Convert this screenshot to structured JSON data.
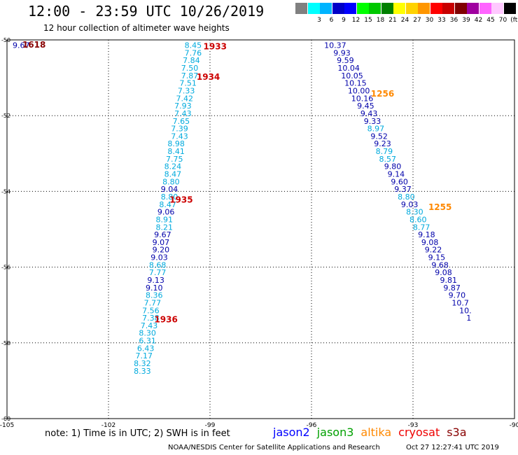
{
  "header": {
    "title": "12:00 - 23:59 UTC 10/26/2019",
    "subtitle": "12 hour collection of altimeter wave heights"
  },
  "legend": {
    "swatches": [
      {
        "label": "",
        "color": "#808080"
      },
      {
        "label": "3",
        "color": "#00ffff"
      },
      {
        "label": "6",
        "color": "#00b4ff"
      },
      {
        "label": "9",
        "color": "#0000c8"
      },
      {
        "label": "12",
        "color": "#0000ff"
      },
      {
        "label": "15",
        "color": "#00ff00"
      },
      {
        "label": "18",
        "color": "#00c800"
      },
      {
        "label": "21",
        "color": "#008000"
      },
      {
        "label": "24",
        "color": "#ffff00"
      },
      {
        "label": "27",
        "color": "#ffd200"
      },
      {
        "label": "30",
        "color": "#ff9600"
      },
      {
        "label": "33",
        "color": "#ff0000"
      },
      {
        "label": "36",
        "color": "#c80000"
      },
      {
        "label": "39",
        "color": "#800000"
      },
      {
        "label": "42",
        "color": "#a000a0"
      },
      {
        "label": "45",
        "color": "#ff64ff"
      },
      {
        "label": "70",
        "color": "#ffc8ff"
      },
      {
        "label": "(ft)",
        "color": "#000000"
      }
    ]
  },
  "axes": {
    "lon_ticks": [
      "-105",
      "-102",
      "-99",
      "-96",
      "-93",
      "-90"
    ],
    "lat_ticks": [
      "-50",
      "-52",
      "-54",
      "-56",
      "-58",
      "-60"
    ],
    "lon_range": [
      -105,
      -90
    ],
    "lat_range": [
      -60,
      -50
    ]
  },
  "colors": {
    "low": "#00aadd",
    "mid": "#0000aa",
    "time_red": "#cc0000",
    "time_orange": "#ff8800",
    "dark_red": "#880000"
  },
  "track_west": [
    {
      "lon": -99.5,
      "lat": -50.14,
      "v": "8.45",
      "c": "low"
    },
    {
      "lon": -99.5,
      "lat": -50.34,
      "v": "7.76",
      "c": "low"
    },
    {
      "lon": -99.55,
      "lat": -50.54,
      "v": "7.84",
      "c": "low"
    },
    {
      "lon": -99.6,
      "lat": -50.74,
      "v": "7.50",
      "c": "low"
    },
    {
      "lon": -99.6,
      "lat": -50.94,
      "v": "7.87",
      "c": "low"
    },
    {
      "lon": -99.65,
      "lat": -51.14,
      "v": "7.51",
      "c": "low"
    },
    {
      "lon": -99.7,
      "lat": -51.34,
      "v": "7.33",
      "c": "low"
    },
    {
      "lon": -99.75,
      "lat": -51.54,
      "v": "7.42",
      "c": "low"
    },
    {
      "lon": -99.8,
      "lat": -51.74,
      "v": "7.93",
      "c": "low"
    },
    {
      "lon": -99.8,
      "lat": -51.94,
      "v": "7.43",
      "c": "low"
    },
    {
      "lon": -99.85,
      "lat": -52.14,
      "v": "7.65",
      "c": "low"
    },
    {
      "lon": -99.9,
      "lat": -52.34,
      "v": "7.39",
      "c": "low"
    },
    {
      "lon": -99.9,
      "lat": -52.54,
      "v": "7.43",
      "c": "low"
    },
    {
      "lon": -100.0,
      "lat": -52.74,
      "v": "8.98",
      "c": "low"
    },
    {
      "lon": -100.0,
      "lat": -52.94,
      "v": "8.41",
      "c": "low"
    },
    {
      "lon": -100.05,
      "lat": -53.14,
      "v": "7.75",
      "c": "low"
    },
    {
      "lon": -100.1,
      "lat": -53.34,
      "v": "8.24",
      "c": "low"
    },
    {
      "lon": -100.1,
      "lat": -53.54,
      "v": "8.47",
      "c": "low"
    },
    {
      "lon": -100.15,
      "lat": -53.74,
      "v": "8.80",
      "c": "low"
    },
    {
      "lon": -100.2,
      "lat": -53.94,
      "v": "9.04",
      "c": "mid"
    },
    {
      "lon": -100.2,
      "lat": -54.14,
      "v": "8.80",
      "c": "low"
    },
    {
      "lon": -100.25,
      "lat": -54.34,
      "v": "8.47",
      "c": "low"
    },
    {
      "lon": -100.3,
      "lat": -54.54,
      "v": "9.06",
      "c": "mid"
    },
    {
      "lon": -100.35,
      "lat": -54.74,
      "v": "8.91",
      "c": "low"
    },
    {
      "lon": -100.35,
      "lat": -54.94,
      "v": "8.21",
      "c": "low"
    },
    {
      "lon": -100.4,
      "lat": -55.14,
      "v": "9.67",
      "c": "mid"
    },
    {
      "lon": -100.45,
      "lat": -55.34,
      "v": "9.07",
      "c": "mid"
    },
    {
      "lon": -100.45,
      "lat": -55.54,
      "v": "9.20",
      "c": "mid"
    },
    {
      "lon": -100.5,
      "lat": -55.74,
      "v": "9.03",
      "c": "mid"
    },
    {
      "lon": -100.55,
      "lat": -55.94,
      "v": "8.68",
      "c": "low"
    },
    {
      "lon": -100.55,
      "lat": -56.14,
      "v": "7.77",
      "c": "low"
    },
    {
      "lon": -100.6,
      "lat": -56.34,
      "v": "9.13",
      "c": "mid"
    },
    {
      "lon": -100.65,
      "lat": -56.54,
      "v": "9.10",
      "c": "mid"
    },
    {
      "lon": -100.65,
      "lat": -56.74,
      "v": "8.36",
      "c": "low"
    },
    {
      "lon": -100.7,
      "lat": -56.94,
      "v": "7.77",
      "c": "low"
    },
    {
      "lon": -100.75,
      "lat": -57.14,
      "v": "7.56",
      "c": "low"
    },
    {
      "lon": -100.75,
      "lat": -57.34,
      "v": "7.38",
      "c": "low"
    },
    {
      "lon": -100.8,
      "lat": -57.54,
      "v": "7.43",
      "c": "low"
    },
    {
      "lon": -100.85,
      "lat": -57.74,
      "v": "8.30",
      "c": "low"
    },
    {
      "lon": -100.85,
      "lat": -57.94,
      "v": "6.31",
      "c": "low"
    },
    {
      "lon": -100.9,
      "lat": -58.14,
      "v": "6.43",
      "c": "low"
    },
    {
      "lon": -100.95,
      "lat": -58.34,
      "v": "7.17",
      "c": "low"
    },
    {
      "lon": -101.0,
      "lat": -58.54,
      "v": "8.32",
      "c": "low"
    },
    {
      "lon": -101.0,
      "lat": -58.74,
      "v": "8.33",
      "c": "low"
    }
  ],
  "track_east": [
    {
      "lon": -95.3,
      "lat": -50.14,
      "v": "10.37",
      "c": "mid"
    },
    {
      "lon": -95.1,
      "lat": -50.34,
      "v": "9.93",
      "c": "mid"
    },
    {
      "lon": -95.0,
      "lat": -50.54,
      "v": "9.59",
      "c": "mid"
    },
    {
      "lon": -94.9,
      "lat": -50.74,
      "v": "10.04",
      "c": "mid"
    },
    {
      "lon": -94.8,
      "lat": -50.94,
      "v": "10.05",
      "c": "mid"
    },
    {
      "lon": -94.7,
      "lat": -51.14,
      "v": "10.15",
      "c": "mid"
    },
    {
      "lon": -94.6,
      "lat": -51.34,
      "v": "10.00",
      "c": "mid"
    },
    {
      "lon": -94.5,
      "lat": -51.54,
      "v": "10.16",
      "c": "mid"
    },
    {
      "lon": -94.4,
      "lat": -51.74,
      "v": "9.45",
      "c": "mid"
    },
    {
      "lon": -94.3,
      "lat": -51.94,
      "v": "9.43",
      "c": "mid"
    },
    {
      "lon": -94.2,
      "lat": -52.14,
      "v": "9.33",
      "c": "mid"
    },
    {
      "lon": -94.1,
      "lat": -52.34,
      "v": "8.97",
      "c": "low"
    },
    {
      "lon": -94.0,
      "lat": -52.54,
      "v": "9.52",
      "c": "mid"
    },
    {
      "lon": -93.9,
      "lat": -52.74,
      "v": "9.23",
      "c": "mid"
    },
    {
      "lon": -93.85,
      "lat": -52.94,
      "v": "8.79",
      "c": "low"
    },
    {
      "lon": -93.75,
      "lat": -53.14,
      "v": "8.57",
      "c": "low"
    },
    {
      "lon": -93.6,
      "lat": -53.34,
      "v": "9.80",
      "c": "mid"
    },
    {
      "lon": -93.5,
      "lat": -53.54,
      "v": "9.14",
      "c": "mid"
    },
    {
      "lon": -93.4,
      "lat": -53.74,
      "v": "9.60",
      "c": "mid"
    },
    {
      "lon": -93.3,
      "lat": -53.94,
      "v": "9.37",
      "c": "mid"
    },
    {
      "lon": -93.2,
      "lat": -54.14,
      "v": "8.80",
      "c": "low"
    },
    {
      "lon": -93.1,
      "lat": -54.34,
      "v": "9.03",
      "c": "mid"
    },
    {
      "lon": -92.95,
      "lat": -54.54,
      "v": "8.30",
      "c": "low"
    },
    {
      "lon": -92.85,
      "lat": -54.74,
      "v": "8.60",
      "c": "low"
    },
    {
      "lon": -92.75,
      "lat": -54.94,
      "v": "8.77",
      "c": "low"
    },
    {
      "lon": -92.6,
      "lat": -55.14,
      "v": "9.18",
      "c": "mid"
    },
    {
      "lon": -92.5,
      "lat": -55.34,
      "v": "9.08",
      "c": "mid"
    },
    {
      "lon": -92.4,
      "lat": -55.54,
      "v": "9.22",
      "c": "mid"
    },
    {
      "lon": -92.3,
      "lat": -55.74,
      "v": "9.15",
      "c": "mid"
    },
    {
      "lon": -92.2,
      "lat": -55.94,
      "v": "9.68",
      "c": "mid"
    },
    {
      "lon": -92.1,
      "lat": -56.14,
      "v": "9.08",
      "c": "mid"
    },
    {
      "lon": -91.95,
      "lat": -56.34,
      "v": "9.81",
      "c": "mid"
    },
    {
      "lon": -91.85,
      "lat": -56.54,
      "v": "9.87",
      "c": "mid"
    },
    {
      "lon": -91.7,
      "lat": -56.74,
      "v": "9.70",
      "c": "mid"
    },
    {
      "lon": -91.6,
      "lat": -56.94,
      "v": "10.7",
      "c": "mid"
    },
    {
      "lon": -91.45,
      "lat": -57.14,
      "v": "10.",
      "c": "mid"
    },
    {
      "lon": -91.35,
      "lat": -57.34,
      "v": "1",
      "c": "mid"
    }
  ],
  "times": [
    {
      "lon": -104.2,
      "lat": -50.13,
      "t": "1618",
      "c": "dark_red"
    },
    {
      "lon": -98.85,
      "lat": -50.18,
      "t": "1933",
      "c": "time_red"
    },
    {
      "lon": -99.05,
      "lat": -50.98,
      "t": "1934",
      "c": "time_red"
    },
    {
      "lon": -99.85,
      "lat": -54.22,
      "t": "1935",
      "c": "time_red"
    },
    {
      "lon": -100.3,
      "lat": -57.38,
      "t": "1936",
      "c": "time_red"
    },
    {
      "lon": -93.9,
      "lat": -51.42,
      "t": "1256",
      "c": "time_orange"
    },
    {
      "lon": -92.2,
      "lat": -54.42,
      "t": "1255",
      "c": "time_orange"
    }
  ],
  "edge_value": {
    "lon": -105,
    "lat": -50.14,
    "v": "9.67",
    "c": "mid"
  },
  "note": "note: 1) Time is in UTC; 2) SWH is in feet",
  "satellites": [
    {
      "name": "jason2",
      "color": "#0000ff"
    },
    {
      "name": "jason3",
      "color": "#00a000"
    },
    {
      "name": "altika",
      "color": "#ff8800"
    },
    {
      "name": "cryosat",
      "color": "#ee0000"
    },
    {
      "name": "s3a",
      "color": "#880000"
    }
  ],
  "footer": {
    "left": "NOAA/NESDIS Center for Satellite Applications and Research",
    "right": "Oct 27 12:27:41 UTC 2019"
  }
}
